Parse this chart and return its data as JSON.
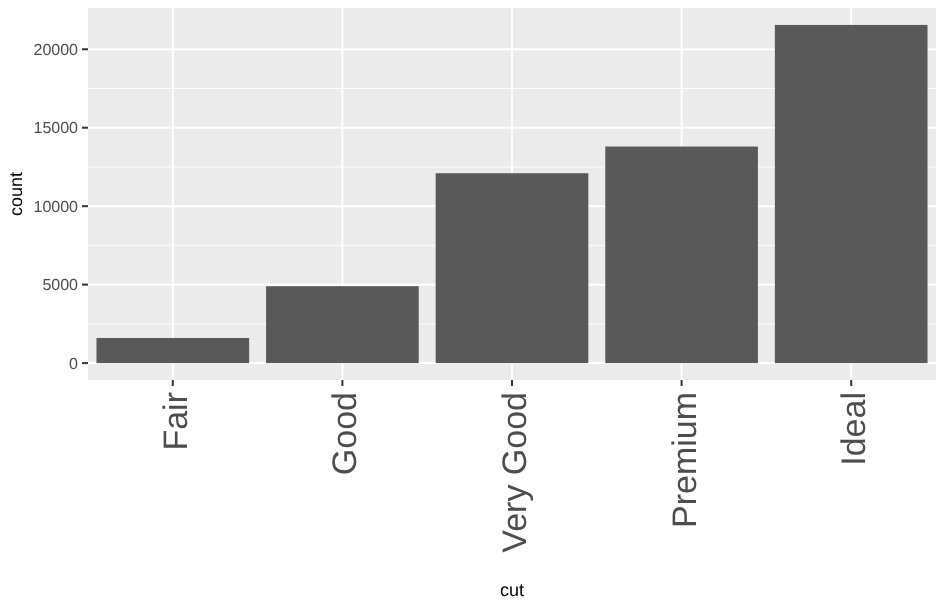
{
  "chart_data": {
    "type": "bar",
    "xlabel": "cut",
    "ylabel": "count",
    "categories": [
      "Fair",
      "Good",
      "Very Good",
      "Premium",
      "Ideal"
    ],
    "values": [
      1600,
      4900,
      12100,
      13800,
      21550
    ],
    "color": "#595959",
    "ylim": [
      -1078,
      22629
    ],
    "yticks": [
      0,
      5000,
      10000,
      15000,
      20000
    ],
    "grid": true
  }
}
